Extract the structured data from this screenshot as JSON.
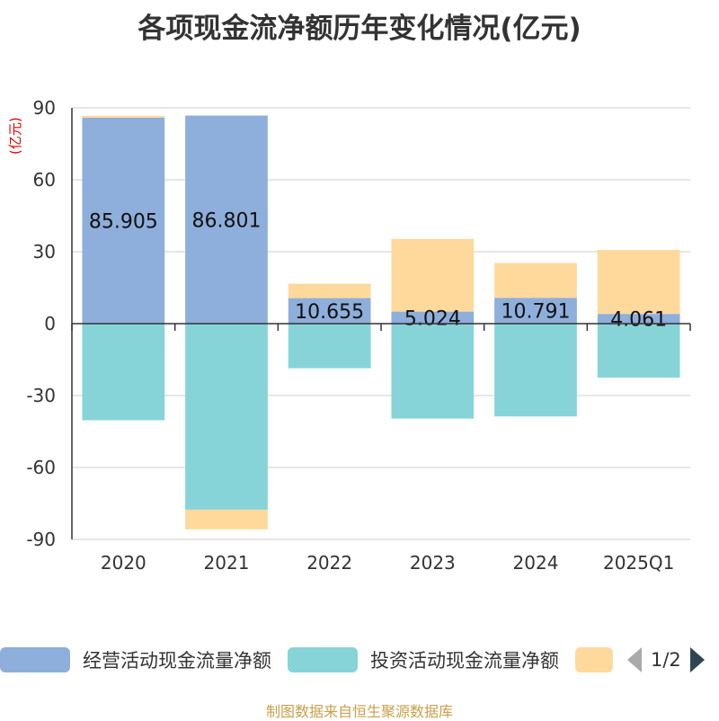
{
  "chart_data": {
    "type": "bar",
    "stacked": true,
    "title": "各项现金流净额历年变化情况(亿元)",
    "ylabel": "(亿元)",
    "ylim": [
      -90,
      90
    ],
    "yticks": [
      90,
      60,
      30,
      0,
      -30,
      -60,
      -90
    ],
    "categories": [
      "2020",
      "2021",
      "2022",
      "2023",
      "2024",
      "2025Q1"
    ],
    "series": [
      {
        "name": "经营活动现金流量净额",
        "color": "#8eaedb",
        "values": [
          85.905,
          86.801,
          10.655,
          5.024,
          10.791,
          4.061
        ],
        "labels": [
          "85.905",
          "86.801",
          "10.655",
          "5.024",
          "10.791",
          "4.061"
        ]
      },
      {
        "name": "投资活动现金流量净额",
        "color": "#86d4d8",
        "values": [
          -40.3,
          -77.6,
          -18.6,
          -39.6,
          -38.7,
          -22.5
        ]
      },
      {
        "name": "",
        "color": "#ffd99b",
        "values": [
          0.8,
          -8.2,
          6.0,
          30.3,
          14.5,
          26.7
        ]
      }
    ],
    "legend_position": "bottom"
  },
  "legend": {
    "items": [
      {
        "label": "经营活动现金流量净额",
        "color": "#8eaedb"
      },
      {
        "label": "投资活动现金流量净额",
        "color": "#86d4d8"
      },
      {
        "label": "",
        "color": "#ffd99b"
      }
    ],
    "page": "1/2"
  },
  "source": "制图数据来自恒生聚源数据库"
}
